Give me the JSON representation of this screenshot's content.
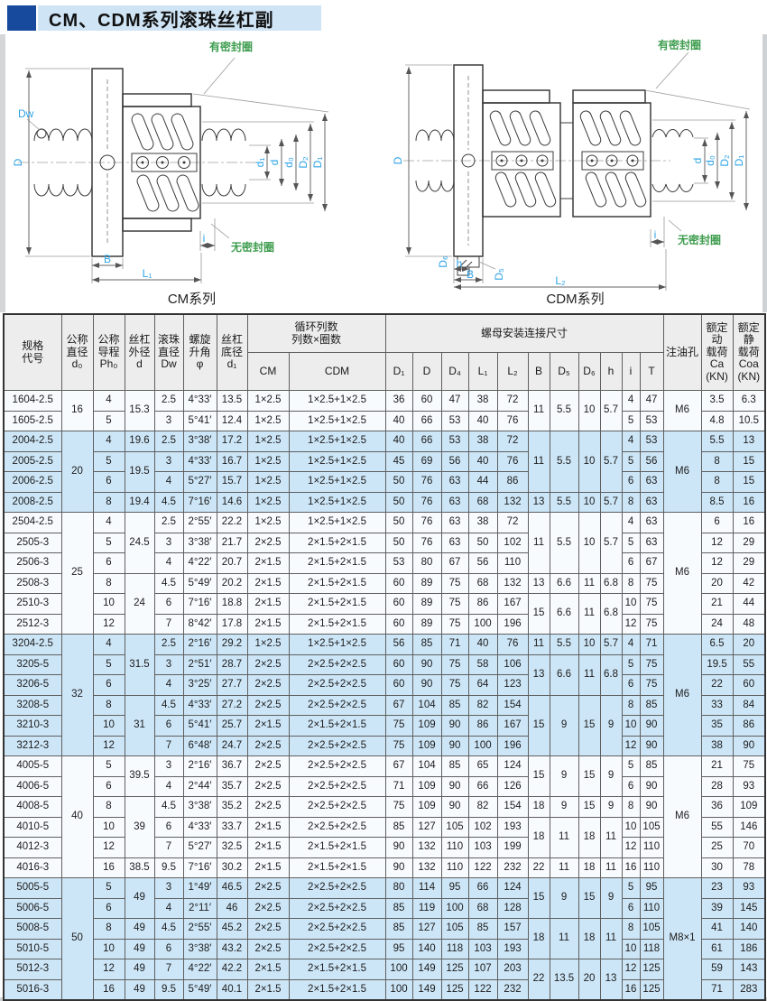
{
  "title": "CM、CDM系列滚珠丝杠副",
  "colors": {
    "accent_blue": "#17499c",
    "banner_bg": "#cfe4f5",
    "row_blue": "#cde6f7",
    "label_cyan": "#2ea3e6",
    "label_green": "#3f9d4f"
  },
  "diagrams": {
    "cm": {
      "caption": "CM系列",
      "seal": "有密封圈",
      "no_seal": "无密封圈",
      "dims": {
        "Dw": "Dw",
        "D": "D",
        "B": "B",
        "L1": "L₁",
        "i": "i",
        "d1": "d₁",
        "d": "d",
        "d0": "d₀",
        "D2": "D₂",
        "D1": "D₁"
      }
    },
    "cdm": {
      "caption": "CDM系列",
      "seal": "有密封圈",
      "no_seal": "无密封圈",
      "dims": {
        "D": "D",
        "D6": "D₆",
        "D5": "D₅",
        "h": "h",
        "B": "B",
        "L2": "L₂",
        "i": "i",
        "d": "d",
        "d0": "d₀",
        "D2": "D₂",
        "D1": "D₁"
      }
    }
  },
  "table": {
    "h": {
      "spec": "规格\n代号",
      "d0": "公称\n直径\nd₀",
      "ph0": "公称\n导程\nPh₀",
      "d": "丝杠\n外径\nd",
      "dw": "滚珠\n直径\nDw",
      "phi": "螺旋\n升角\nφ",
      "d1": "丝杠\n底径\nd₁",
      "circ": "循环列数\n列数×圈数",
      "cm": "CM",
      "cdm": "CDM",
      "nut": "螺母安装连接尺寸",
      "nut_cols": [
        "D₁",
        "D",
        "D₄",
        "L₁",
        "L₂",
        "B",
        "D₅",
        "D₆",
        "h",
        "i",
        "T"
      ],
      "oil": "注油孔",
      "ca": "额定动\n载荷\nCa\n(KN)",
      "coa": "额定\n静\n载荷\nCoa\n(KN)"
    },
    "rows": [
      {
        "s": false,
        "c": [
          "1604-2.5",
          {
            "v": "16",
            "rs": 2
          },
          "4",
          {
            "v": "15.3",
            "rs": 2
          },
          "2.5",
          "4°33′",
          "13.5",
          "1×2.5",
          "1×2.5+1×2.5",
          "36",
          "60",
          "47",
          "38",
          "72",
          {
            "v": "11",
            "rs": 2
          },
          {
            "v": "5.5",
            "rs": 2
          },
          {
            "v": "10",
            "rs": 2
          },
          {
            "v": "5.7",
            "rs": 2
          },
          "4",
          "47",
          {
            "v": "M6",
            "rs": 2
          },
          "3.5",
          "6.3"
        ]
      },
      {
        "s": false,
        "c": [
          "1605-2.5",
          "5",
          "3",
          "5°41′",
          "12.4",
          "1×2.5",
          "1×2.5+1×2.5",
          "40",
          "66",
          "53",
          "40",
          "76",
          "5",
          "53",
          "4.8",
          "10.5"
        ]
      },
      {
        "s": true,
        "c": [
          "2004-2.5",
          {
            "v": "20",
            "rs": 4
          },
          "4",
          "19.6",
          "2.5",
          "3°38′",
          "17.2",
          "1×2.5",
          "1×2.5+1×2.5",
          "40",
          "66",
          "53",
          "38",
          "72",
          {
            "v": "11",
            "rs": 3
          },
          {
            "v": "5.5",
            "rs": 3
          },
          {
            "v": "10",
            "rs": 3
          },
          {
            "v": "5.7",
            "rs": 3
          },
          "4",
          "53",
          {
            "v": "M6",
            "rs": 4
          },
          "5.5",
          "13"
        ]
      },
      {
        "s": true,
        "c": [
          "2005-2.5",
          "5",
          {
            "v": "19.5",
            "rs": 2
          },
          "3",
          "4°33′",
          "16.7",
          "1×2.5",
          "1×2.5+1×2.5",
          "45",
          "69",
          "56",
          "40",
          "76",
          "5",
          "56",
          "8",
          "15"
        ]
      },
      {
        "s": true,
        "c": [
          "2006-2.5",
          "6",
          "4",
          "5°27′",
          "15.7",
          "1×2.5",
          "1×2.5+1×2.5",
          "50",
          "76",
          "63",
          "44",
          "86",
          "6",
          "63",
          "8",
          "15"
        ]
      },
      {
        "s": true,
        "c": [
          "2008-2.5",
          "8",
          "19.4",
          "4.5",
          "7°16′",
          "14.6",
          "1×2.5",
          "1×2.5+1×2.5",
          "50",
          "76",
          "63",
          "68",
          "132",
          "13",
          "5.5",
          "10",
          "5.7",
          "8",
          "63",
          "8.5",
          "16"
        ]
      },
      {
        "s": false,
        "c": [
          "2504-2.5",
          {
            "v": "25",
            "rs": 6
          },
          "4",
          {
            "v": "24.5",
            "rs": 3
          },
          "2.5",
          "2°55′",
          "22.2",
          "1×2.5",
          "1×2.5+1×2.5",
          "50",
          "76",
          "63",
          "38",
          "72",
          {
            "v": "11",
            "rs": 3
          },
          {
            "v": "5.5",
            "rs": 3
          },
          {
            "v": "10",
            "rs": 3
          },
          {
            "v": "5.7",
            "rs": 3
          },
          "4",
          "63",
          {
            "v": "M6",
            "rs": 6
          },
          "6",
          "16"
        ]
      },
      {
        "s": false,
        "c": [
          "2505-3",
          "5",
          "3",
          "3°38′",
          "21.7",
          "2×2.5",
          "2×1.5+2×1.5",
          "50",
          "76",
          "63",
          "50",
          "102",
          "5",
          "63",
          "12",
          "29"
        ]
      },
      {
        "s": false,
        "c": [
          "2506-3",
          "6",
          "4",
          "4°22′",
          "20.7",
          "2×1.5",
          "2×1.5+2×1.5",
          "53",
          "80",
          "67",
          "56",
          "110",
          "6",
          "67",
          "12",
          "29"
        ]
      },
      {
        "s": false,
        "c": [
          "2508-3",
          "8",
          {
            "v": "24",
            "rs": 3
          },
          "4.5",
          "5°49′",
          "20.2",
          "2×1.5",
          "2×1.5+2×1.5",
          "60",
          "89",
          "75",
          "68",
          "132",
          "13",
          "6.6",
          "11",
          "6.8",
          "8",
          "75",
          "20",
          "42"
        ]
      },
      {
        "s": false,
        "c": [
          "2510-3",
          "10",
          "6",
          "7°16′",
          "18.8",
          "2×1.5",
          "2×1.5+2×1.5",
          "60",
          "89",
          "75",
          "86",
          "167",
          {
            "v": "15",
            "rs": 2
          },
          {
            "v": "6.6",
            "rs": 2
          },
          {
            "v": "11",
            "rs": 2
          },
          {
            "v": "6.8",
            "rs": 2
          },
          "10",
          "75",
          "21",
          "44"
        ]
      },
      {
        "s": false,
        "c": [
          "2512-3",
          "12",
          "7",
          "8°42′",
          "17.8",
          "2×1.5",
          "2×1.5+2×1.5",
          "60",
          "89",
          "75",
          "100",
          "196",
          "12",
          "75",
          "24",
          "48"
        ]
      },
      {
        "s": true,
        "c": [
          "3204-2.5",
          {
            "v": "32",
            "rs": 6
          },
          "4",
          {
            "v": "31.5",
            "rs": 3
          },
          "2.5",
          "2°16′",
          "29.2",
          "1×2.5",
          "1×2.5+1×2.5",
          "56",
          "85",
          "71",
          "40",
          "76",
          "11",
          "5.5",
          "10",
          "5.7",
          "4",
          "71",
          {
            "v": "M6",
            "rs": 6
          },
          "6.5",
          "20"
        ]
      },
      {
        "s": true,
        "c": [
          "3205-5",
          "5",
          "3",
          "2°51′",
          "28.7",
          "2×2.5",
          "2×2.5+2×2.5",
          "60",
          "90",
          "75",
          "58",
          "106",
          {
            "v": "13",
            "rs": 2
          },
          {
            "v": "6.6",
            "rs": 2
          },
          {
            "v": "11",
            "rs": 2
          },
          {
            "v": "6.8",
            "rs": 2
          },
          "5",
          "75",
          "19.5",
          "55"
        ]
      },
      {
        "s": true,
        "c": [
          "3206-5",
          "6",
          "4",
          "3°25′",
          "27.7",
          "2×2.5",
          "2×2.5+2×2.5",
          "60",
          "90",
          "75",
          "64",
          "123",
          "6",
          "75",
          "22",
          "60"
        ]
      },
      {
        "s": true,
        "c": [
          "3208-5",
          "8",
          {
            "v": "31",
            "rs": 3
          },
          "4.5",
          "4°33′",
          "27.2",
          "2×2.5",
          "2×2.5+2×2.5",
          "67",
          "104",
          "85",
          "82",
          "154",
          {
            "v": "15",
            "rs": 3
          },
          {
            "v": "9",
            "rs": 3
          },
          {
            "v": "15",
            "rs": 3
          },
          {
            "v": "9",
            "rs": 3
          },
          "8",
          "85",
          "33",
          "84"
        ]
      },
      {
        "s": true,
        "c": [
          "3210-3",
          "10",
          "6",
          "5°41′",
          "25.7",
          "2×1.5",
          "2×1.5+2×1.5",
          "75",
          "109",
          "90",
          "86",
          "167",
          "10",
          "90",
          "35",
          "86"
        ]
      },
      {
        "s": true,
        "c": [
          "3212-3",
          "12",
          "7",
          "6°48′",
          "24.7",
          "2×2.5",
          "2×2.5+2×2.5",
          "75",
          "109",
          "90",
          "100",
          "196",
          "12",
          "90",
          "38",
          "90"
        ]
      },
      {
        "s": false,
        "c": [
          "4005-5",
          {
            "v": "40",
            "rs": 6
          },
          "5",
          {
            "v": "39.5",
            "rs": 2
          },
          "3",
          "2°16′",
          "36.7",
          "2×2.5",
          "2×2.5+2×2.5",
          "67",
          "104",
          "85",
          "65",
          "124",
          {
            "v": "15",
            "rs": 2
          },
          {
            "v": "9",
            "rs": 2
          },
          {
            "v": "15",
            "rs": 2
          },
          {
            "v": "9",
            "rs": 2
          },
          "5",
          "85",
          {
            "v": "M6",
            "rs": 6
          },
          "21",
          "75"
        ]
      },
      {
        "s": false,
        "c": [
          "4006-5",
          "6",
          "4",
          "2°44′",
          "35.7",
          "2×2.5",
          "2×2.5+2×2.5",
          "71",
          "109",
          "90",
          "66",
          "126",
          "6",
          "90",
          "28",
          "93"
        ]
      },
      {
        "s": false,
        "c": [
          "4008-5",
          "8",
          {
            "v": "39",
            "rs": 3
          },
          "4.5",
          "3°38′",
          "35.2",
          "2×2.5",
          "2×2.5+2×2.5",
          "75",
          "109",
          "90",
          "82",
          "154",
          "18",
          "9",
          "15",
          "9",
          "8",
          "90",
          "36",
          "109"
        ]
      },
      {
        "s": false,
        "c": [
          "4010-5",
          "10",
          "6",
          "4°33′",
          "33.7",
          "2×1.5",
          "2×2.5+2×2.5",
          "85",
          "127",
          "105",
          "102",
          "193",
          {
            "v": "18",
            "rs": 2
          },
          {
            "v": "11",
            "rs": 2
          },
          {
            "v": "18",
            "rs": 2
          },
          {
            "v": "11",
            "rs": 2
          },
          "10",
          "105",
          "55",
          "146"
        ]
      },
      {
        "s": false,
        "c": [
          "4012-3",
          "12",
          "7",
          "5°27′",
          "32.5",
          "2×1.5",
          "2×1.5+2×1.5",
          "90",
          "132",
          "110",
          "103",
          "199",
          "12",
          "110",
          "25",
          "70"
        ]
      },
      {
        "s": false,
        "c": [
          "4016-3",
          "16",
          "38.5",
          "9.5",
          "7°16′",
          "30.2",
          "2×1.5",
          "2×1.5+2×1.5",
          "90",
          "132",
          "110",
          "122",
          "232",
          "22",
          "11",
          "18",
          "11",
          "16",
          "110",
          "30",
          "78"
        ]
      },
      {
        "s": true,
        "c": [
          "5005-5",
          {
            "v": "50",
            "rs": 6
          },
          "5",
          {
            "v": "49",
            "rs": 2
          },
          "3",
          "1°49′",
          "46.5",
          "2×2.5",
          "2×2.5+2×2.5",
          "80",
          "114",
          "95",
          "66",
          "124",
          {
            "v": "15",
            "rs": 2
          },
          {
            "v": "9",
            "rs": 2
          },
          {
            "v": "15",
            "rs": 2
          },
          {
            "v": "9",
            "rs": 2
          },
          "5",
          "95",
          {
            "v": "M8×1",
            "rs": 6
          },
          "23",
          "93"
        ]
      },
      {
        "s": true,
        "c": [
          "5006-5",
          "6",
          "4",
          "2°11′",
          "46",
          "2×2.5",
          "2×2.5+2×2.5",
          "85",
          "119",
          "100",
          "68",
          "128",
          "6",
          "110",
          "39",
          "145"
        ]
      },
      {
        "s": true,
        "c": [
          "5008-5",
          "8",
          "49",
          "4.5",
          "2°55′",
          "45.2",
          "2×2.5",
          "2×2.5+2×2.5",
          "85",
          "127",
          "105",
          "85",
          "157",
          {
            "v": "18",
            "rs": 2
          },
          {
            "v": "11",
            "rs": 2
          },
          {
            "v": "18",
            "rs": 2
          },
          {
            "v": "11",
            "rs": 2
          },
          "8",
          "105",
          "41",
          "140"
        ]
      },
      {
        "s": true,
        "c": [
          "5010-5",
          "10",
          "49",
          "6",
          "3°38′",
          "43.2",
          "2×2.5",
          "2×2.5+2×2.5",
          "95",
          "140",
          "118",
          "103",
          "193",
          "10",
          "118",
          "61",
          "186"
        ]
      },
      {
        "s": true,
        "c": [
          "5012-3",
          "12",
          "49",
          "7",
          "4°22′",
          "42.2",
          "2×1.5",
          "2×1.5+2×1.5",
          "100",
          "149",
          "125",
          "107",
          "203",
          {
            "v": "22",
            "rs": 2
          },
          {
            "v": "13.5",
            "rs": 2
          },
          {
            "v": "20",
            "rs": 2
          },
          {
            "v": "13",
            "rs": 2
          },
          "12",
          "125",
          "59",
          "143"
        ]
      },
      {
        "s": true,
        "c": [
          "5016-3",
          "16",
          "49",
          "9.5",
          "5°49′",
          "40.1",
          "2×1.5",
          "2×1.5+2×1.5",
          "100",
          "149",
          "125",
          "122",
          "232",
          "16",
          "125",
          "71",
          "283"
        ]
      }
    ]
  }
}
